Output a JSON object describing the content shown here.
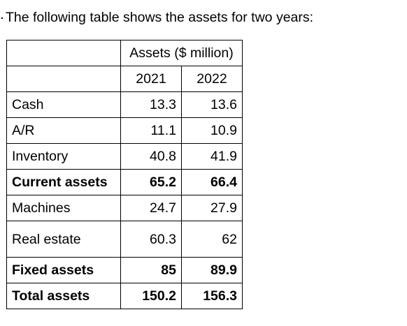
{
  "intro_text": "The following table shows the assets for two years:",
  "table": {
    "group_header": "Assets ($ million)",
    "years": [
      "2021",
      "2022"
    ],
    "rows": [
      {
        "label": "Cash",
        "v2021": "13.3",
        "v2022": "13.6",
        "bold": false
      },
      {
        "label": "A/R",
        "v2021": "11.1",
        "v2022": "10.9",
        "bold": false
      },
      {
        "label": "Inventory",
        "v2021": "40.8",
        "v2022": "41.9",
        "bold": false
      },
      {
        "label": "Current assets",
        "v2021": "65.2",
        "v2022": "66.4",
        "bold": true
      },
      {
        "label": "Machines",
        "v2021": "24.7",
        "v2022": "27.9",
        "bold": false
      },
      {
        "label": "Real estate",
        "v2021": "60.3",
        "v2022": "62",
        "bold": false
      },
      {
        "label": "Fixed assets",
        "v2021": "85",
        "v2022": "89.9",
        "bold": true
      },
      {
        "label": "Total assets",
        "v2021": "150.2",
        "v2022": "156.3",
        "bold": true
      }
    ]
  }
}
